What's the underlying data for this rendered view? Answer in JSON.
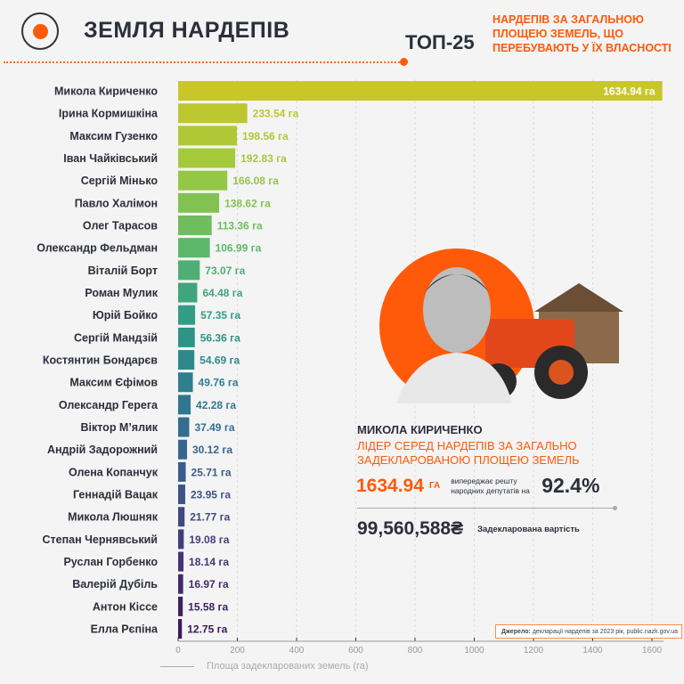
{
  "header": {
    "title": "ЗЕМЛЯ НАРДЕПІВ",
    "top": "ТОП-25",
    "subtitle": "НАРДЕПІВ ЗА ЗАГАЛЬНОЮ ПЛОЩЕЮ ЗЕМЕЛЬ, ЩО ПЕРЕБУВАЮТЬ У ЇХ ВЛАСНОСТІ",
    "accent": "#ff5a0a"
  },
  "chart_data": {
    "type": "bar",
    "orientation": "horizontal",
    "categories": [
      "Микола Кириченко",
      "Ірина Кормишкіна",
      "Максим Гузенко",
      "Іван Чайківський",
      "Сергій Мінько",
      "Павло Халімон",
      "Олег Тарасов",
      "Олександр Фельдман",
      "Віталій Борт",
      "Роман Мулик",
      "Юрій Бойко",
      "Сергій Мандзій",
      "Костянтин Бондарєв",
      "Максим Єфімов",
      "Олександр Герега",
      "Віктор М’ялик",
      "Андрій Задорожний",
      "Олена Копанчук",
      "Геннадій Вацак",
      "Микола Люшняк",
      "Степан Чернявський",
      "Руслан Горбенко",
      "Валерій Дубіль",
      "Антон Кіссе",
      "Елла Рєпіна"
    ],
    "values": [
      1634.94,
      233.54,
      198.56,
      192.83,
      166.08,
      138.62,
      113.36,
      106.99,
      73.07,
      64.48,
      57.35,
      56.36,
      54.69,
      49.76,
      42.28,
      37.49,
      30.12,
      25.71,
      23.95,
      21.77,
      19.08,
      18.14,
      16.97,
      15.58,
      12.75
    ],
    "value_labels": [
      "1634.94 га",
      "233.54 га",
      "198.56 га",
      "192.83 га",
      "166.08 га",
      "138.62 га",
      "113.36 га",
      "106.99 га",
      "73.07 га",
      "64.48 га",
      "57.35 га",
      "56.36 га",
      "54.69 га",
      "49.76 га",
      "42.28 га",
      "37.49 га",
      "30.12 га",
      "25.71 га",
      "23.95 га",
      "21.77 га",
      "19.08 га",
      "18.14 га",
      "16.97 га",
      "15.58 га",
      "12.75 га"
    ],
    "xlabel": "Площа задекларованих земель (га)",
    "xlim": [
      0,
      1640
    ],
    "xticks": [
      "0",
      "200",
      "400",
      "600",
      "800",
      "1000",
      "1200",
      "1400",
      "1600"
    ],
    "grid": true,
    "color_gradient": [
      "#c9c62a",
      "#9fca3e",
      "#5fb86a",
      "#2e9a86",
      "#2f7891",
      "#3a5b8c",
      "#44397a",
      "#3b1a5a"
    ]
  },
  "highlight": {
    "name": "МИКОЛА КИРИЧЕНКО",
    "lead": "ЛІДЕР СЕРЕД НАРДЕПІВ ЗА ЗАГАЛЬНО ЗАДЕКЛАРОВАНОЮ ПЛОЩЕЮ ЗЕМЕЛЬ",
    "area_value": "1634.94",
    "area_unit": "ГА",
    "ahead_text": "випереджає решту народних депутатів на",
    "ahead_pct": "92.4%",
    "cost": "99,560,588₴",
    "cost_label": "Задекларована вартість"
  },
  "source": {
    "label": "Джерело:",
    "text": " декларації нардепів за 2023 рік, public.nazk.gov.ua"
  }
}
